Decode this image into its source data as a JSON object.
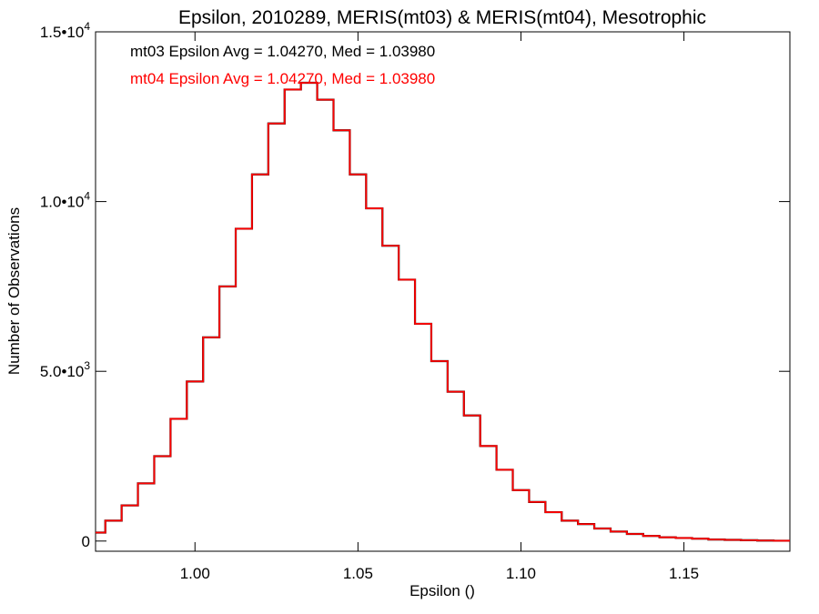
{
  "chart_data": {
    "type": "line",
    "title": "Epsilon, 2010289, MERIS(mt03) & MERIS(mt04), Mesotrophic",
    "xlabel": "Epsilon ()",
    "ylabel": "Number of Observations",
    "xlim": [
      0.9695,
      1.1825
    ],
    "ylim": [
      -300,
      15000
    ],
    "x_ticks": [
      1.0,
      1.05,
      1.1,
      1.15
    ],
    "x_tick_labels": [
      "1.00",
      "1.05",
      "1.10",
      "1.15"
    ],
    "y_ticks": [
      0,
      5000,
      10000,
      15000
    ],
    "y_tick_labels": [
      {
        "mantissa": "0",
        "exponent": ""
      },
      {
        "mantissa": "5.0•10",
        "exponent": "3"
      },
      {
        "mantissa": "1.0•10",
        "exponent": "4"
      },
      {
        "mantissa": "1.5•10",
        "exponent": "4"
      }
    ],
    "step": "histogram",
    "annotations": [
      {
        "text": "mt03 Epsilon Avg = 1.04270, Med = 1.03980",
        "color": "#000000"
      },
      {
        "text": "mt04 Epsilon Avg = 1.04270, Med = 1.03980",
        "color": "#ff0000"
      }
    ],
    "series": [
      {
        "color": "#000000",
        "x": [
          0.97,
          0.975,
          0.98,
          0.985,
          0.99,
          0.995,
          1.0,
          1.005,
          1.01,
          1.015,
          1.02,
          1.025,
          1.03,
          1.035,
          1.04,
          1.045,
          1.05,
          1.055,
          1.06,
          1.065,
          1.07,
          1.075,
          1.08,
          1.085,
          1.09,
          1.095,
          1.1,
          1.105,
          1.11,
          1.115,
          1.12,
          1.125,
          1.13,
          1.135,
          1.14,
          1.145,
          1.15,
          1.155,
          1.16,
          1.165,
          1.17,
          1.175,
          1.18
        ],
        "y": [
          250,
          600,
          1050,
          1700,
          2500,
          3600,
          4700,
          6000,
          7500,
          9200,
          10800,
          12300,
          13300,
          13500,
          13000,
          12100,
          10800,
          9800,
          8700,
          7700,
          6400,
          5300,
          4400,
          3700,
          2800,
          2100,
          1500,
          1150,
          850,
          600,
          500,
          370,
          280,
          210,
          150,
          110,
          90,
          70,
          45,
          35,
          25,
          15,
          10
        ]
      },
      {
        "color": "#ff0000",
        "x": [
          0.97,
          0.975,
          0.98,
          0.985,
          0.99,
          0.995,
          1.0,
          1.005,
          1.01,
          1.015,
          1.02,
          1.025,
          1.03,
          1.035,
          1.04,
          1.045,
          1.05,
          1.055,
          1.06,
          1.065,
          1.07,
          1.075,
          1.08,
          1.085,
          1.09,
          1.095,
          1.1,
          1.105,
          1.11,
          1.115,
          1.12,
          1.125,
          1.13,
          1.135,
          1.14,
          1.145,
          1.15,
          1.155,
          1.16,
          1.165,
          1.17,
          1.175,
          1.18
        ],
        "y": [
          250,
          600,
          1050,
          1700,
          2500,
          3600,
          4700,
          6000,
          7500,
          9200,
          10800,
          12300,
          13300,
          13500,
          13000,
          12100,
          10800,
          9800,
          8700,
          7700,
          6400,
          5300,
          4400,
          3700,
          2800,
          2100,
          1500,
          1150,
          850,
          600,
          500,
          370,
          280,
          210,
          150,
          110,
          90,
          70,
          45,
          35,
          25,
          15,
          10
        ]
      }
    ]
  }
}
